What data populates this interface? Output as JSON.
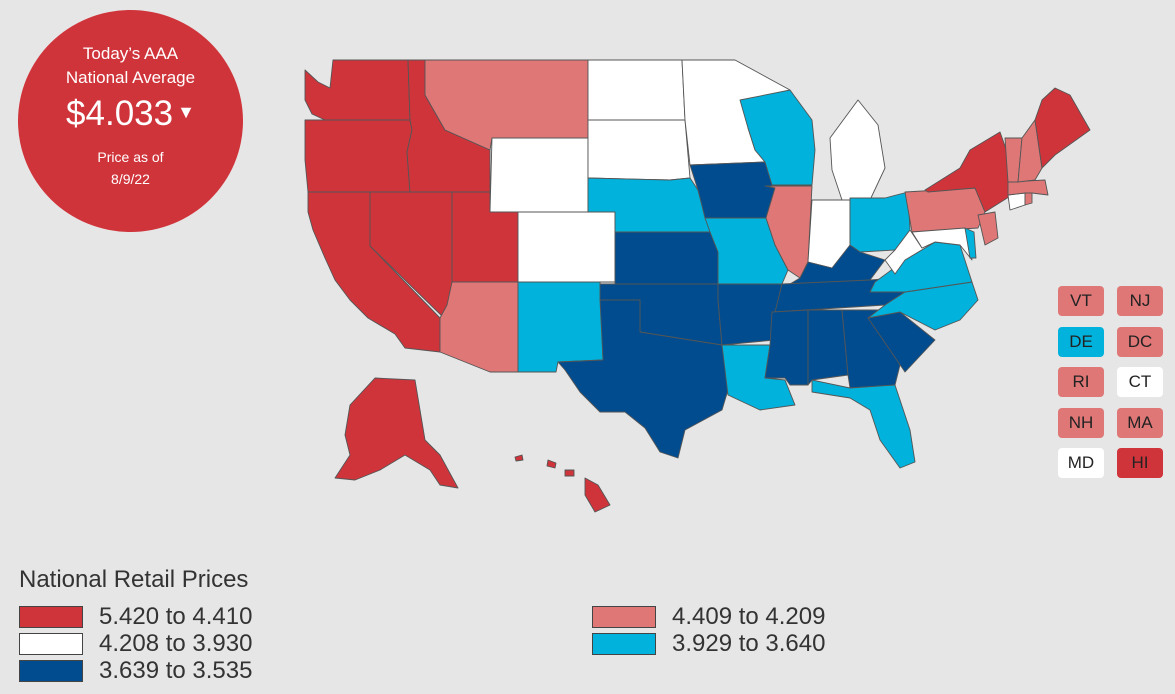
{
  "badge": {
    "heading": [
      "Today’s AAA",
      "National Average"
    ],
    "price": "$4.033",
    "caret": "▼",
    "as_of": [
      "Price as of",
      "8/9/22"
    ]
  },
  "colors": {
    "r1": "#d0343b",
    "r2": "#df7777",
    "r3": "#ffffff",
    "r4": "#00b2dc",
    "r5": "#004c8f"
  },
  "legend": {
    "title": "National Retail Prices",
    "items": [
      {
        "label": "5.420 to 4.410",
        "range": "r1"
      },
      {
        "label": "4.409 to 4.209",
        "range": "r2"
      },
      {
        "label": "4.208 to 3.930",
        "range": "r3"
      },
      {
        "label": "3.929 to 3.640",
        "range": "r4"
      },
      {
        "label": "3.639 to 3.535",
        "range": "r5"
      }
    ]
  },
  "states": {
    "AK": "r1",
    "HI": "r1",
    "WA": "r1",
    "OR": "r1",
    "CA": "r1",
    "NV": "r1",
    "ID": "r1",
    "UT": "r1",
    "NY": "r1",
    "ME": "r1",
    "MT": "r2",
    "AZ": "r2",
    "IL": "r2",
    "PA": "r2",
    "VT": "r2",
    "NH": "r2",
    "MA": "r2",
    "RI": "r2",
    "NJ": "r2",
    "DC": "r2",
    "WY": "r3",
    "CO": "r3",
    "ND": "r3",
    "SD": "r3",
    "MN": "r3",
    "MI": "r3",
    "IN": "r3",
    "WV": "r3",
    "CT": "r3",
    "MD": "r3",
    "NM": "r4",
    "NE": "r4",
    "MO": "r4",
    "WI": "r4",
    "OH": "r4",
    "VA": "r4",
    "NC": "r4",
    "LA": "r4",
    "FL": "r4",
    "DE": "r4",
    "TX": "r5",
    "OK": "r5",
    "KS": "r5",
    "IA": "r5",
    "AR": "r5",
    "KY": "r5",
    "TN": "r5",
    "MS": "r5",
    "AL": "r5",
    "GA": "r5",
    "SC": "r5"
  },
  "small_states": [
    "VT",
    "NJ",
    "DE",
    "DC",
    "RI",
    "CT",
    "NH",
    "MA",
    "MD",
    "HI"
  ]
}
